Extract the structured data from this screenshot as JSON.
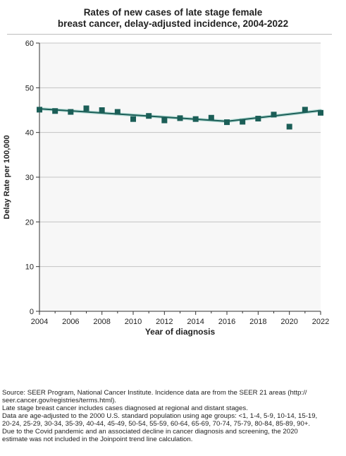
{
  "chart_data": {
    "type": "scatter",
    "title_line1": "Rates of new cases of late stage female",
    "title_line2": "breast cancer, delay-adjusted incidence, 2004-2022",
    "xlabel": "Year of diagnosis",
    "ylabel": "Delay Rate per 100,000",
    "xlim": [
      2004,
      2022
    ],
    "ylim": [
      0,
      60
    ],
    "x_ticks": [
      2004,
      2006,
      2008,
      2010,
      2012,
      2014,
      2016,
      2018,
      2020,
      2022
    ],
    "y_ticks": [
      0,
      10,
      20,
      30,
      40,
      50,
      60
    ],
    "grid": true,
    "series": [
      {
        "type": "scatter",
        "marker": "square",
        "color": "#1b5e57",
        "x": [
          2004,
          2005,
          2006,
          2007,
          2008,
          2009,
          2010,
          2011,
          2012,
          2013,
          2014,
          2015,
          2016,
          2017,
          2018,
          2019,
          2020,
          2021,
          2022
        ],
        "y": [
          45.1,
          44.8,
          44.6,
          45.4,
          45.0,
          44.6,
          43.0,
          43.7,
          42.7,
          43.2,
          43.0,
          43.3,
          42.3,
          42.4,
          43.1,
          44.0,
          41.3,
          45.1,
          44.4
        ]
      },
      {
        "type": "line",
        "color": "#1b5e57",
        "x": [
          2004,
          2016,
          2022
        ],
        "y": [
          45.3,
          42.5,
          44.9
        ]
      }
    ]
  },
  "footnotes": [
    "Source: SEER Program, National Cancer Institute. Incidence data are from the SEER 21 areas (http://",
    "seer.cancer.gov/registries/terms.html).",
    "Late stage breast cancer includes cases diagnosed at regional and distant stages.",
    "Data are age-adjusted to the 2000 U.S. standard population using age groups: <1, 1-4, 5-9, 10-14, 15-19,",
    "20-24, 25-29, 30-34, 35-39, 40-44, 45-49, 50-54, 55-59, 60-64, 65-69, 70-74, 75-79, 80-84, 85-89, 90+.",
    "Due to the Covid pandemic and an associated decline in cancer diagnosis and screening, the 2020",
    "estimate was not included in the Joinpoint trend line calculation."
  ]
}
